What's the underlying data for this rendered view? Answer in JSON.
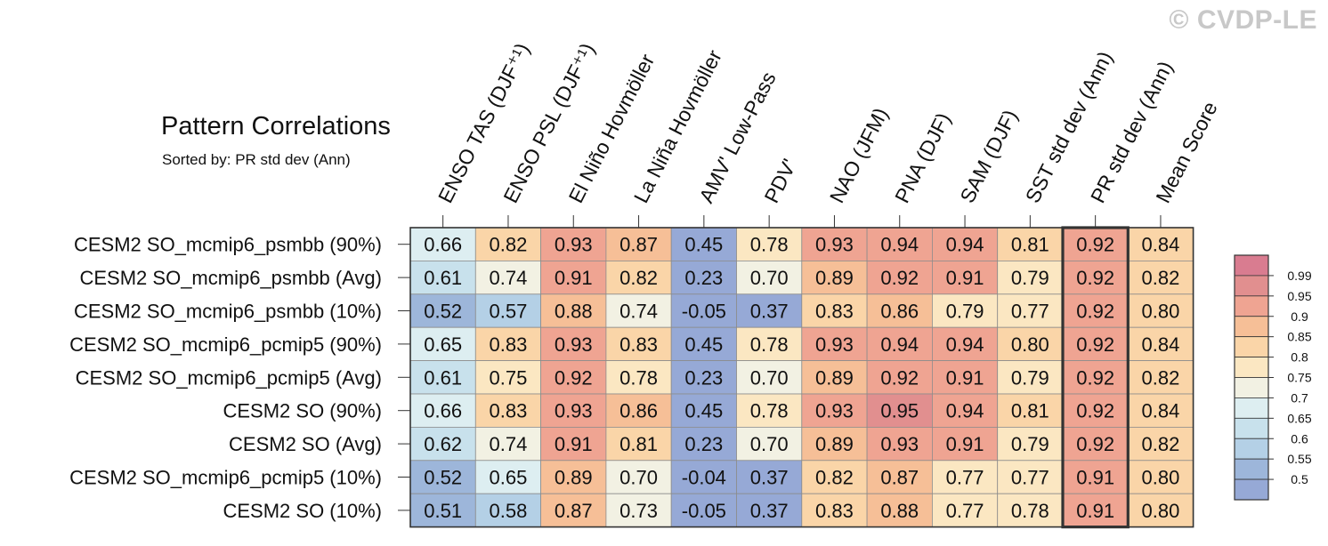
{
  "watermark": "© CVDP-LE",
  "title": "Pattern Correlations",
  "subtitle": "Sorted by: PR std dev (Ann)",
  "chart_data": {
    "type": "heatmap",
    "columns": [
      "ENSO TAS (DJF⁺¹)",
      "ENSO PSL (DJF⁺¹)",
      "El Niño Hovmöller",
      "La Niña Hovmöller",
      "AMV' Low-Pass",
      "PDV'",
      "NAO (JFM)",
      "PNA (DJF)",
      "SAM (DJF)",
      "SST std dev (Ann)",
      "PR std dev (Ann)",
      "Mean Score"
    ],
    "rows": [
      "CESM2 SO_mcmip6_psmbb (90%)",
      "CESM2 SO_mcmip6_psmbb (Avg)",
      "CESM2 SO_mcmip6_psmbb (10%)",
      "CESM2 SO_mcmip6_pcmip5 (90%)",
      "CESM2 SO_mcmip6_pcmip5 (Avg)",
      "CESM2 SO (90%)",
      "CESM2 SO (Avg)",
      "CESM2 SO_mcmip6_pcmip5 (10%)",
      "CESM2 SO (10%)"
    ],
    "values": [
      [
        0.66,
        0.82,
        0.93,
        0.87,
        0.45,
        0.78,
        0.93,
        0.94,
        0.94,
        0.81,
        0.92,
        0.84
      ],
      [
        0.61,
        0.74,
        0.91,
        0.82,
        0.23,
        0.7,
        0.89,
        0.92,
        0.91,
        0.79,
        0.92,
        0.82
      ],
      [
        0.52,
        0.57,
        0.88,
        0.74,
        -0.05,
        0.37,
        0.83,
        0.86,
        0.79,
        0.77,
        0.92,
        0.8
      ],
      [
        0.65,
        0.83,
        0.93,
        0.83,
        0.45,
        0.78,
        0.93,
        0.94,
        0.94,
        0.8,
        0.92,
        0.84
      ],
      [
        0.61,
        0.75,
        0.92,
        0.78,
        0.23,
        0.7,
        0.89,
        0.92,
        0.91,
        0.79,
        0.92,
        0.82
      ],
      [
        0.66,
        0.83,
        0.93,
        0.86,
        0.45,
        0.78,
        0.93,
        0.95,
        0.94,
        0.81,
        0.92,
        0.84
      ],
      [
        0.62,
        0.74,
        0.91,
        0.81,
        0.23,
        0.7,
        0.89,
        0.93,
        0.91,
        0.79,
        0.92,
        0.82
      ],
      [
        0.52,
        0.65,
        0.89,
        0.7,
        -0.04,
        0.37,
        0.82,
        0.87,
        0.77,
        0.77,
        0.91,
        0.8
      ],
      [
        0.51,
        0.58,
        0.87,
        0.73,
        -0.05,
        0.37,
        0.83,
        0.88,
        0.77,
        0.78,
        0.91,
        0.8
      ]
    ],
    "highlighted_column": "PR std dev (Ann)",
    "colorbar": {
      "labels": [
        "0.99",
        "0.95",
        "0.9",
        "0.85",
        "0.8",
        "0.75",
        "0.7",
        "0.65",
        "0.6",
        "0.55",
        "0.5"
      ],
      "bins": [
        {
          "min": 0.99,
          "color": "#d97c90"
        },
        {
          "min": 0.95,
          "color": "#e18f8f"
        },
        {
          "min": 0.9,
          "color": "#efa492"
        },
        {
          "min": 0.85,
          "color": "#f6bf97"
        },
        {
          "min": 0.8,
          "color": "#fad5a8"
        },
        {
          "min": 0.75,
          "color": "#fbe7c2"
        },
        {
          "min": 0.7,
          "color": "#f2f1e3"
        },
        {
          "min": 0.65,
          "color": "#ddeef1"
        },
        {
          "min": 0.6,
          "color": "#c8e1ec"
        },
        {
          "min": 0.55,
          "color": "#b4d0e6"
        },
        {
          "min": 0.5,
          "color": "#9db6da"
        },
        {
          "min": -1.0,
          "color": "#96a9d6"
        }
      ]
    }
  }
}
